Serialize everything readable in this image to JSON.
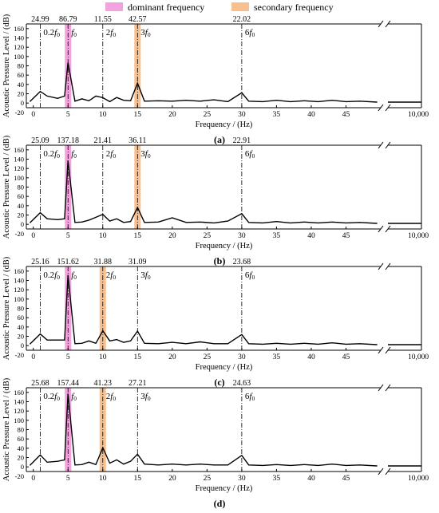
{
  "legend": {
    "dominant_label": "dominant frequency",
    "dominant_color": "#f2a2dd",
    "secondary_label": "secondary frequency",
    "secondary_color": "#f7c08e"
  },
  "chart_data": [
    {
      "type": "line",
      "panel_label": "(a)",
      "xlabel": "Frequency / (Hz)",
      "ylabel": "Acoustic Pressure Level / (dB)",
      "xlim": [
        -1,
        50
      ],
      "ylim": [
        -10,
        170
      ],
      "xticks": [
        "0",
        "5",
        "10",
        "15",
        "20",
        "25",
        "30",
        "35",
        "40",
        "45"
      ],
      "yticks": [
        "-20",
        "0",
        "20",
        "40",
        "60",
        "80",
        "100",
        "120",
        "140",
        "160"
      ],
      "x_end_label": "10,000",
      "dominant_freq": 5,
      "secondary_freq": 15,
      "markers": [
        {
          "x": 1,
          "label_pre": "0.2",
          "label_post": "0",
          "value": "24.99"
        },
        {
          "x": 5,
          "label_pre": "",
          "label_post": "0",
          "value": "86.79"
        },
        {
          "x": 10,
          "label_pre": "2",
          "label_post": "0",
          "value": "11.55"
        },
        {
          "x": 15,
          "label_pre": "3",
          "label_post": "0",
          "value": "42.57"
        },
        {
          "x": 30,
          "label_pre": "6",
          "label_post": "0",
          "value": "22.02"
        }
      ],
      "x": [
        -0.5,
        1,
        2,
        3.5,
        4.5,
        5,
        6,
        7,
        8,
        9,
        10,
        11,
        12,
        13,
        14,
        15,
        16,
        18,
        20,
        22,
        24,
        26,
        28,
        30,
        31,
        33,
        35,
        37,
        39,
        41,
        43,
        45,
        47,
        49.5
      ],
      "y": [
        3,
        25,
        15,
        10,
        15,
        86.8,
        4,
        9,
        5,
        15,
        11.6,
        3,
        12,
        6,
        5,
        42.6,
        4,
        5,
        4,
        6,
        4,
        7,
        3,
        22,
        4,
        3,
        6,
        3,
        5,
        3,
        6,
        3,
        4,
        2
      ],
      "tail_y": 2
    },
    {
      "type": "line",
      "panel_label": "(b)",
      "xlabel": "Frequency / (Hz)",
      "ylabel": "Acoustic Pressure Level / (dB)",
      "xlim": [
        -1,
        50
      ],
      "ylim": [
        -10,
        170
      ],
      "xticks": [
        "0",
        "5",
        "10",
        "15",
        "20",
        "25",
        "30",
        "35",
        "40",
        "45"
      ],
      "yticks": [
        "-20",
        "0",
        "20",
        "40",
        "60",
        "80",
        "100",
        "120",
        "140",
        "160"
      ],
      "x_end_label": "10,000",
      "dominant_freq": 5,
      "secondary_freq": 15,
      "markers": [
        {
          "x": 1,
          "label_pre": "0.2",
          "label_post": "0",
          "value": "25.09"
        },
        {
          "x": 5,
          "label_pre": "",
          "label_post": "0",
          "value": "137.18"
        },
        {
          "x": 10,
          "label_pre": "2",
          "label_post": "0",
          "value": "21.41"
        },
        {
          "x": 15,
          "label_pre": "3",
          "label_post": "0",
          "value": "36.11"
        },
        {
          "x": 30,
          "label_pre": "6",
          "label_post": "0",
          "value": "22.91"
        }
      ],
      "x": [
        -0.5,
        1,
        2,
        3.5,
        4.5,
        5,
        6,
        7,
        8,
        9,
        10,
        11,
        12,
        13,
        14,
        15,
        16,
        18,
        20,
        22,
        24,
        26,
        28,
        30,
        31,
        33,
        35,
        37,
        39,
        41,
        43,
        45,
        47,
        49.5
      ],
      "y": [
        3,
        25,
        12,
        10,
        12,
        137.2,
        4,
        5,
        9,
        15,
        21.4,
        7,
        12,
        4,
        6,
        36.1,
        4,
        5,
        14,
        4,
        5,
        3,
        7,
        22.9,
        4,
        3,
        6,
        3,
        5,
        3,
        5,
        3,
        4,
        2
      ],
      "tail_y": 2
    },
    {
      "type": "line",
      "panel_label": "(c)",
      "xlabel": "Frequency / (Hz)",
      "ylabel": "Acoustic Pressure Level / (dB)",
      "xlim": [
        -1,
        50
      ],
      "ylim": [
        -10,
        170
      ],
      "xticks": [
        "0",
        "5",
        "10",
        "15",
        "20",
        "25",
        "30",
        "35",
        "40",
        "45"
      ],
      "yticks": [
        "-20",
        "0",
        "20",
        "40",
        "60",
        "80",
        "100",
        "120",
        "140",
        "160"
      ],
      "x_end_label": "10,000",
      "dominant_freq": 5,
      "secondary_freq": 10,
      "markers": [
        {
          "x": 1,
          "label_pre": "0.2",
          "label_post": "0",
          "value": "25.16"
        },
        {
          "x": 5,
          "label_pre": "",
          "label_post": "0",
          "value": "151.62"
        },
        {
          "x": 10,
          "label_pre": "2",
          "label_post": "0",
          "value": "31.88"
        },
        {
          "x": 15,
          "label_pre": "3",
          "label_post": "0",
          "value": "31.09"
        },
        {
          "x": 30,
          "label_pre": "6",
          "label_post": "0",
          "value": "23.68"
        }
      ],
      "x": [
        -0.5,
        1,
        2,
        3.5,
        4.5,
        5,
        6,
        7,
        8,
        9,
        10,
        11,
        12,
        13,
        14,
        15,
        16,
        18,
        20,
        22,
        24,
        26,
        28,
        30,
        31,
        33,
        35,
        37,
        39,
        41,
        43,
        45,
        47,
        49.5
      ],
      "y": [
        3,
        25,
        12,
        12,
        12,
        151.6,
        4,
        5,
        10,
        5,
        31.9,
        10,
        13,
        7,
        10,
        31.1,
        5,
        4,
        7,
        4,
        8,
        4,
        4,
        23.7,
        4,
        3,
        5,
        3,
        5,
        3,
        6,
        3,
        4,
        2
      ],
      "tail_y": 2
    },
    {
      "type": "line",
      "panel_label": "(d)",
      "xlabel": "Frequency / (Hz)",
      "ylabel": "Acoustic Pressure Level / (dB)",
      "xlim": [
        -1,
        50
      ],
      "ylim": [
        -10,
        170
      ],
      "xticks": [
        "0",
        "5",
        "10",
        "15",
        "20",
        "25",
        "30",
        "35",
        "40",
        "45"
      ],
      "yticks": [
        "-20",
        "0",
        "20",
        "40",
        "60",
        "80",
        "100",
        "120",
        "140",
        "160"
      ],
      "x_end_label": "10,000",
      "dominant_freq": 5,
      "secondary_freq": 10,
      "markers": [
        {
          "x": 1,
          "label_pre": "0.2",
          "label_post": "0",
          "value": "25.68"
        },
        {
          "x": 5,
          "label_pre": "",
          "label_post": "0",
          "value": "157.44"
        },
        {
          "x": 10,
          "label_pre": "2",
          "label_post": "0",
          "value": "41.23"
        },
        {
          "x": 15,
          "label_pre": "3",
          "label_post": "0",
          "value": "27.21"
        },
        {
          "x": 30,
          "label_pre": "6",
          "label_post": "0",
          "value": "24.63"
        }
      ],
      "x": [
        -0.5,
        1,
        2,
        3.5,
        4.5,
        5,
        6,
        7,
        8,
        9,
        10,
        11,
        12,
        13,
        14,
        15,
        16,
        18,
        20,
        22,
        24,
        26,
        28,
        30,
        31,
        33,
        35,
        37,
        39,
        41,
        43,
        45,
        47,
        49.5
      ],
      "y": [
        3,
        25.7,
        10,
        12,
        15,
        157.4,
        4,
        5,
        10,
        5,
        41.2,
        8,
        15,
        6,
        12,
        27.2,
        6,
        4,
        6,
        4,
        6,
        4,
        4,
        24.6,
        4,
        3,
        5,
        3,
        5,
        3,
        6,
        3,
        4,
        2
      ],
      "tail_y": 2
    }
  ]
}
